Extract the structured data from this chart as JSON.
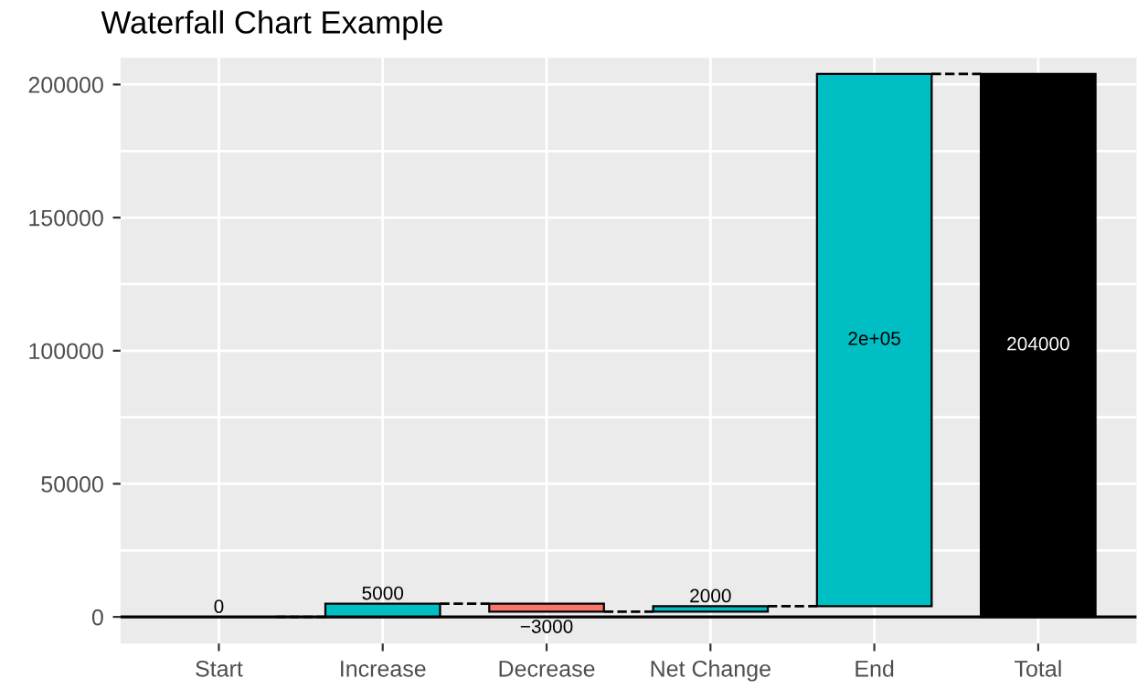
{
  "chart_data": {
    "type": "bar",
    "title": "Waterfall Chart Example",
    "categories": [
      "Start",
      "Increase",
      "Decrease",
      "Net Change",
      "End",
      "Total"
    ],
    "values": [
      0,
      5000,
      -3000,
      2000,
      200000,
      204000
    ],
    "base": [
      0,
      0,
      5000,
      2000,
      4000,
      0
    ],
    "colors": [
      "#00bfc4",
      "#00bfc4",
      "#f8766d",
      "#00bfc4",
      "#00bfc4",
      "#000000"
    ],
    "value_labels": [
      "0",
      "5000",
      "−3000",
      "2000",
      "2e+05",
      "204000"
    ],
    "ylim": [
      -10000,
      210000
    ],
    "yticks": [
      0,
      {
        "value": 25000,
        "label": null
      },
      50000,
      {
        "value": 75000,
        "label": null
      },
      100000,
      {
        "value": 125000,
        "label": null
      },
      150000,
      {
        "value": 175000,
        "label": null
      },
      200000
    ],
    "ref_lines": [
      {
        "axis": "y",
        "value": 0,
        "color": "#000000",
        "line_style": "solid"
      }
    ],
    "grid": true,
    "legend": false
  }
}
